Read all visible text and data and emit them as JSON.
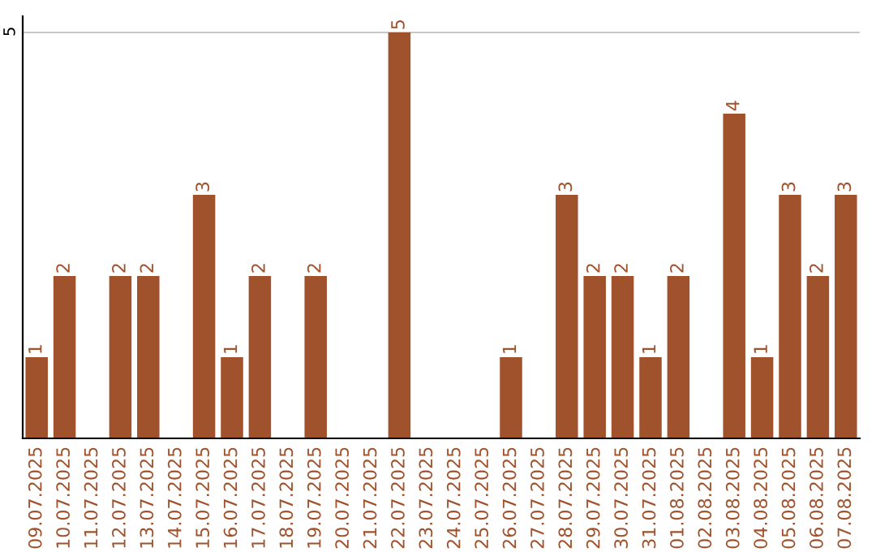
{
  "chart_data": {
    "type": "bar",
    "categories": [
      "09.07.2025",
      "10.07.2025",
      "11.07.2025",
      "12.07.2025",
      "13.07.2025",
      "14.07.2025",
      "15.07.2025",
      "16.07.2025",
      "17.07.2025",
      "18.07.2025",
      "19.07.2025",
      "20.07.2025",
      "21.07.2025",
      "22.07.2025",
      "23.07.2025",
      "24.07.2025",
      "25.07.2025",
      "26.07.2025",
      "27.07.2025",
      "28.07.2025",
      "29.07.2025",
      "30.07.2025",
      "31.07.2025",
      "01.08.2025",
      "02.08.2025",
      "03.08.2025",
      "04.08.2025",
      "05.08.2025",
      "06.08.2025",
      "07.08.2025"
    ],
    "values": [
      1,
      2,
      0,
      2,
      2,
      0,
      3,
      1,
      2,
      0,
      2,
      0,
      0,
      5,
      0,
      0,
      0,
      1,
      0,
      3,
      2,
      2,
      1,
      2,
      0,
      4,
      1,
      3,
      2,
      3
    ],
    "value_labels": [
      "1",
      "2",
      null,
      "2",
      "2",
      null,
      "3",
      "1",
      "2",
      null,
      "2",
      null,
      null,
      "5",
      null,
      null,
      null,
      "1",
      null,
      "3",
      "2",
      "2",
      "1",
      "2",
      null,
      "4",
      "1",
      "3",
      "2",
      "3"
    ],
    "color": "#a0522d",
    "ylim": [
      0,
      5.2
    ],
    "yticks": [
      5
    ],
    "grid": "y",
    "legend": false
  }
}
